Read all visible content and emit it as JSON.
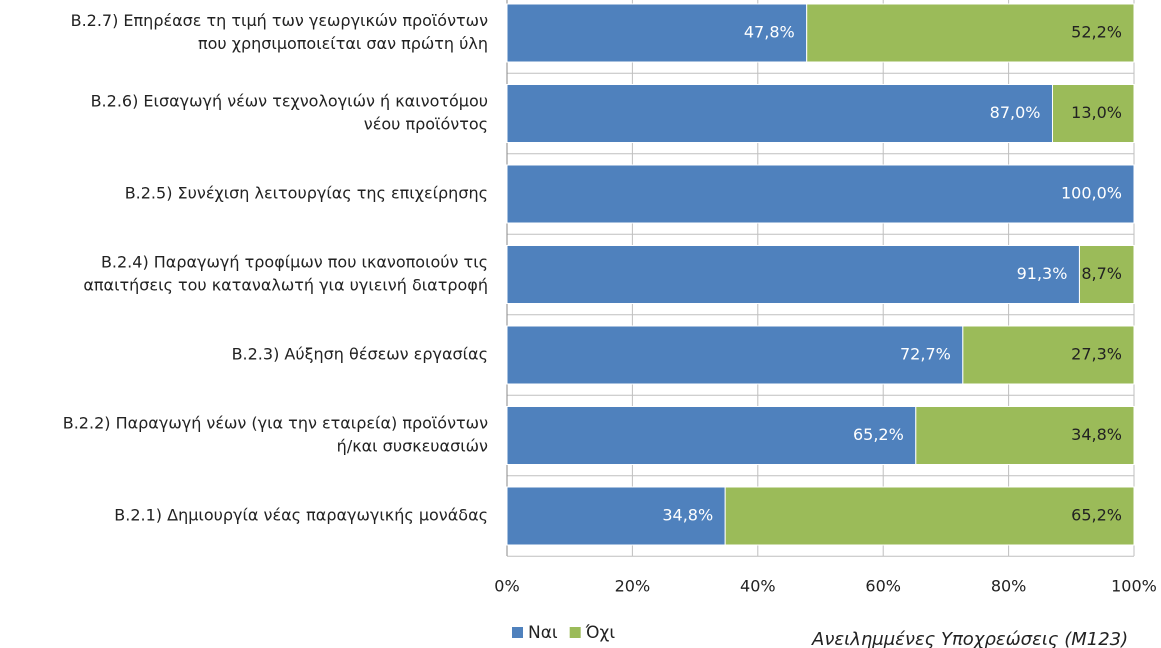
{
  "chart_data": {
    "type": "stacked_barh",
    "categories": [
      [
        "B.2.7) Επηρέασε τη τιμή των γεωργικών προϊόντων",
        "που χρησιμοποιείται σαν πρώτη ύλη"
      ],
      [
        "B.2.6) Εισαγωγή νέων τεχνολογιών ή καινοτόμου",
        "νέου προϊόντος"
      ],
      [
        "B.2.5) Συνέχιση λειτουργίας της επιχείρησης"
      ],
      [
        "B.2.4) Παραγωγή τροφίμων που ικανοποιούν  τις",
        "απαιτήσεις του καταναλωτή για υγιεινή διατροφή"
      ],
      [
        "B.2.3) Αύξηση θέσεων εργασίας"
      ],
      [
        "B.2.2) Παραγωγή νέων (για την εταιρεία) προϊόντων",
        "ή/και συσκευασιών"
      ],
      [
        "B.2.1) Δημιουργία νέας παραγωγικής μονάδας"
      ]
    ],
    "series": [
      {
        "name": "Ναι",
        "color": "#4f81bd",
        "values": [
          47.8,
          87.0,
          100.0,
          91.3,
          72.7,
          65.2,
          34.8
        ],
        "value_labels": [
          "47,8%",
          "87,0%",
          "100,0%",
          "91,3%",
          "72,7%",
          "65,2%",
          "34,8%"
        ]
      },
      {
        "name": "Όχι",
        "color": "#9bbb59",
        "values": [
          52.2,
          13.0,
          0,
          8.7,
          27.3,
          34.8,
          65.2
        ],
        "value_labels": [
          "52,2%",
          "13,0%",
          null,
          "8,7%",
          "27,3%",
          "34,8%",
          "65,2%"
        ]
      }
    ],
    "xlim": [
      0,
      100
    ],
    "xticks": [
      {
        "value": 0,
        "label": "0%"
      },
      {
        "value": 20,
        "label": "20%"
      },
      {
        "value": 40,
        "label": "40%"
      },
      {
        "value": 60,
        "label": "60%"
      },
      {
        "value": 80,
        "label": "80%"
      },
      {
        "value": 100,
        "label": "100%"
      }
    ],
    "grid": true,
    "annotation": "Ανειλημμένες Υποχρεώσεις (Μ123)"
  }
}
